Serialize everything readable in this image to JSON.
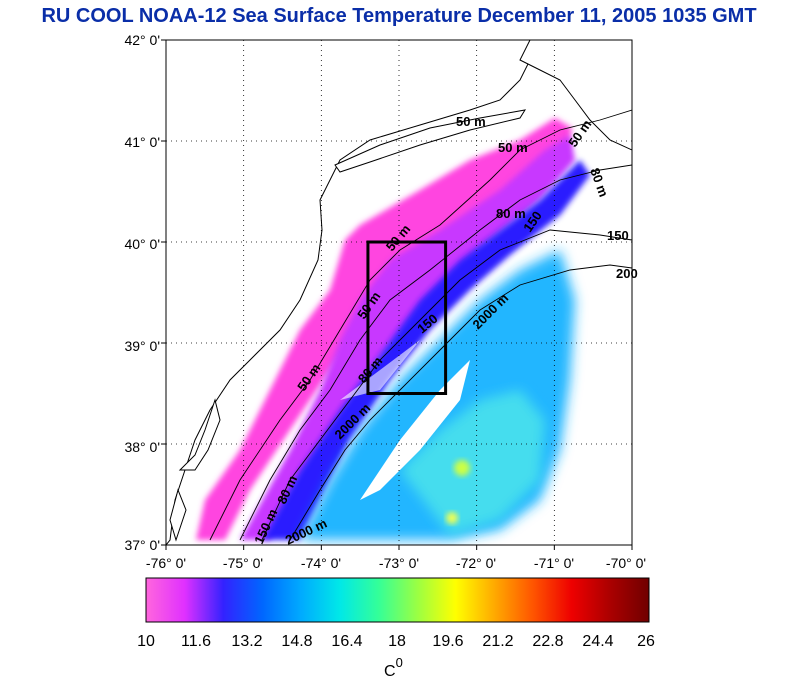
{
  "title": "RU COOL  NOAA-12 Sea Surface Temperature December 11, 2005 1035 GMT",
  "map": {
    "lat_labels": [
      "42° 0'",
      "41° 0'",
      "40° 0'",
      "39° 0'",
      "38° 0'",
      "37° 0'"
    ],
    "lon_labels": [
      "-76° 0'",
      "-75° 0'",
      "-74° 0'",
      "-73° 0'",
      "-72° 0'",
      "-71° 0'",
      "-70° 0'"
    ],
    "lat_values": [
      42,
      41,
      40,
      39,
      38,
      37
    ],
    "lon_values": [
      -76,
      -75,
      -74,
      -73,
      -72,
      -71,
      -70
    ],
    "contour_labels": [
      "50 m",
      "50 m",
      "50 m",
      "80 m",
      "150",
      "150",
      "200",
      "50 m",
      "2000 m",
      "50 m",
      "80 m",
      "150",
      "80 m",
      "2000 m",
      "80 m",
      "150 m",
      "2000 m",
      "50 m"
    ],
    "highlight_box": {
      "lon_min": -73.4,
      "lon_max": -72.4,
      "lat_min": 38.5,
      "lat_max": 40.0
    }
  },
  "colorbar": {
    "min": 10,
    "max": 26,
    "tick_labels": [
      "10",
      "11.6",
      "13.2",
      "14.8",
      "16.4",
      "18",
      "19.6",
      "21.2",
      "22.8",
      "24.4",
      "26"
    ],
    "unit": "C",
    "unit_sup": "0",
    "colors": [
      "#ff66dd",
      "#e030ff",
      "#3322ff",
      "#0066ff",
      "#00aaff",
      "#00e8e8",
      "#33ff99",
      "#99ff44",
      "#ffff00",
      "#ffaa00",
      "#ff5500",
      "#ee0000",
      "#aa0000",
      "#700000"
    ]
  }
}
